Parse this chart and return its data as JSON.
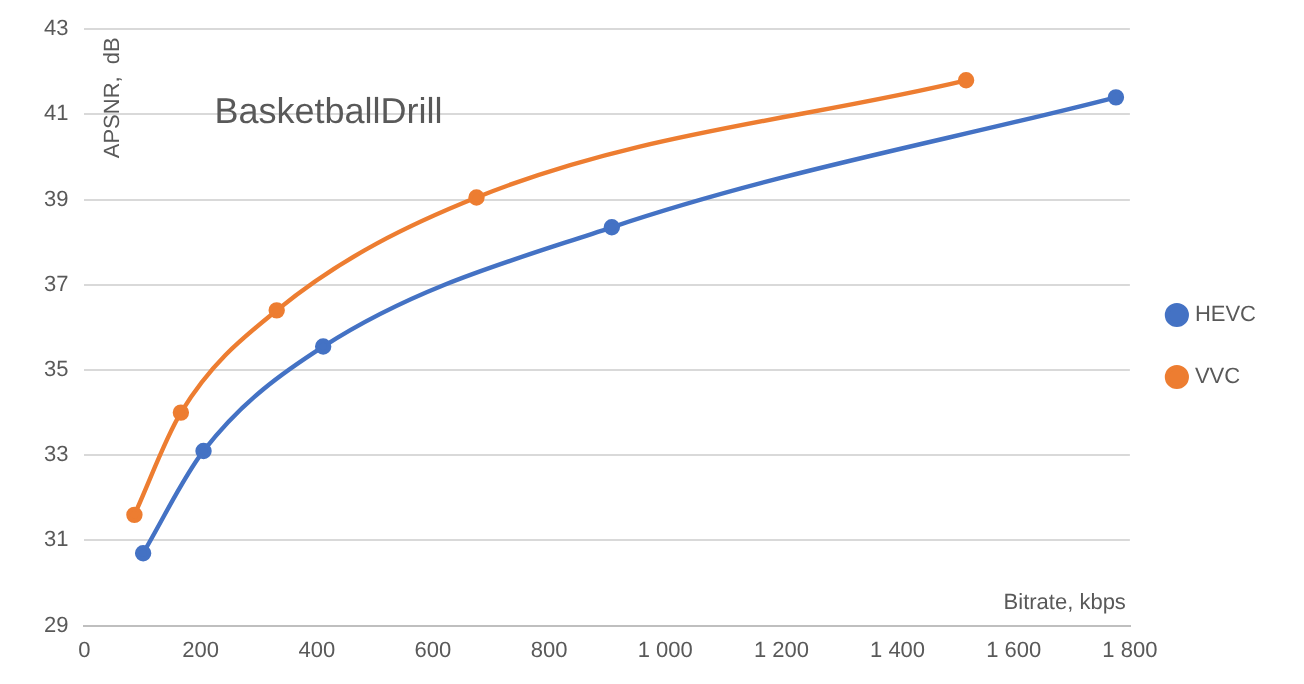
{
  "chart_data": {
    "type": "line",
    "title": "BasketballDrill",
    "xlabel": "Bitrate, kbps",
    "ylabel": "APSNR,  dB",
    "xlim": [
      0,
      1800
    ],
    "xticks": [
      0,
      200,
      400,
      600,
      800,
      {
        "value": 1000,
        "label": "1 000"
      },
      {
        "value": 1200,
        "label": "1 200"
      },
      {
        "value": 1400,
        "label": "1 400"
      },
      {
        "value": 1600,
        "label": "1 600"
      },
      {
        "value": 1800,
        "label": "1 800"
      }
    ],
    "ylim": [
      29,
      43
    ],
    "yticks": [
      29,
      31,
      33,
      35,
      37,
      39,
      41,
      43
    ],
    "grid": "y",
    "legend": "right",
    "marker": "circle",
    "line_style": "solid",
    "series": [
      {
        "name": "HEVC",
        "color": "#4472c4",
        "x": [
          101,
          205,
          411,
          908,
          1776
        ],
        "values": [
          30.7,
          33.1,
          35.55,
          38.35,
          41.4
        ]
      },
      {
        "name": "VVC",
        "color": "#ed7d31",
        "x": [
          86,
          166,
          331,
          675,
          1518
        ],
        "values": [
          31.6,
          34.0,
          36.4,
          39.05,
          41.8
        ]
      }
    ]
  }
}
